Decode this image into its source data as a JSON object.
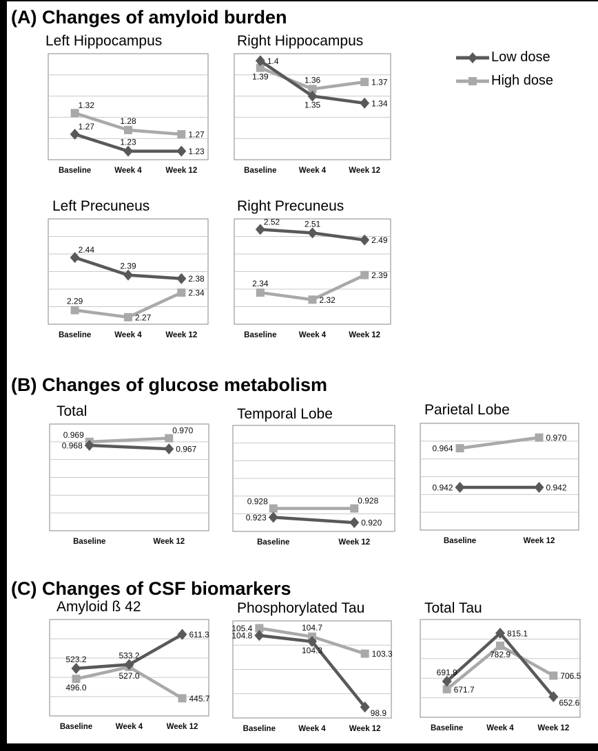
{
  "figure": {
    "frame_color": "#000000",
    "background": "#ffffff",
    "low_dose_color": "#595959",
    "high_dose_color": "#a9a9a9"
  },
  "sections": [
    {
      "id": "A",
      "heading": "(A) Changes of amyloid burden"
    },
    {
      "id": "B",
      "heading": "(B) Changes of glucose metabolism"
    },
    {
      "id": "C",
      "heading": "(C) Changes of CSF biomarkers"
    }
  ],
  "legend": {
    "items": [
      {
        "label": "Low dose",
        "marker": "diamond",
        "color": "#595959"
      },
      {
        "label": "High dose",
        "marker": "square",
        "color": "#a9a9a9"
      }
    ],
    "position": "top-right"
  },
  "chart_data": [
    {
      "id": "left-hippocampus",
      "section": "A",
      "type": "line",
      "title": "Left Hippocampus",
      "categories": [
        "Baseline",
        "Week 4",
        "Week 12"
      ],
      "ylim": [
        1.21,
        1.46
      ],
      "gridline_bands": 5,
      "grid": true,
      "series": [
        {
          "name": "Low dose",
          "marker": "diamond",
          "color": "#595959",
          "values": [
            1.27,
            1.23,
            1.23
          ],
          "labels": [
            "1.27",
            "1.23",
            "1.23"
          ],
          "label_pos": [
            "right-up",
            "above",
            "right"
          ]
        },
        {
          "name": "High dose",
          "marker": "square",
          "color": "#a9a9a9",
          "values": [
            1.32,
            1.28,
            1.27
          ],
          "labels": [
            "1.32",
            "1.28",
            "1.27"
          ],
          "label_pos": [
            "right-up",
            "above",
            "right"
          ]
        }
      ]
    },
    {
      "id": "right-hippocampus",
      "section": "A",
      "type": "line",
      "title": "Right Hippocampus",
      "categories": [
        "Baseline",
        "Week 4",
        "Week 12"
      ],
      "ylim": [
        1.26,
        1.41
      ],
      "gridline_bands": 5,
      "grid": true,
      "series": [
        {
          "name": "Low dose",
          "marker": "diamond",
          "color": "#595959",
          "values": [
            1.4,
            1.35,
            1.34
          ],
          "labels": [
            "1.4",
            "1.35",
            "1.34"
          ],
          "label_pos": [
            "right",
            "below",
            "right"
          ]
        },
        {
          "name": "High dose",
          "marker": "square",
          "color": "#a9a9a9",
          "values": [
            1.39,
            1.36,
            1.37
          ],
          "labels": [
            "1.39",
            "1.36",
            "1.37"
          ],
          "label_pos": [
            "below",
            "above",
            "right"
          ]
        }
      ]
    },
    {
      "id": "left-precuneus",
      "section": "A",
      "type": "line",
      "title": "Left Precuneus",
      "categories": [
        "Baseline",
        "Week 4",
        "Week 12"
      ],
      "ylim": [
        2.25,
        2.55
      ],
      "gridline_bands": 6,
      "grid": true,
      "series": [
        {
          "name": "Low dose",
          "marker": "diamond",
          "color": "#595959",
          "values": [
            2.44,
            2.39,
            2.38
          ],
          "labels": [
            "2.44",
            "2.39",
            "2.38"
          ],
          "label_pos": [
            "right-up",
            "above",
            "right"
          ]
        },
        {
          "name": "High dose",
          "marker": "square",
          "color": "#a9a9a9",
          "values": [
            2.29,
            2.27,
            2.34
          ],
          "labels": [
            "2.29",
            "2.27",
            "2.34"
          ],
          "label_pos": [
            "above",
            "right",
            "right"
          ]
        }
      ]
    },
    {
      "id": "right-precuneus",
      "section": "A",
      "type": "line",
      "title": "Right Precuneus",
      "categories": [
        "Baseline",
        "Week 4",
        "Week 12"
      ],
      "ylim": [
        2.25,
        2.55
      ],
      "gridline_bands": 6,
      "grid": true,
      "series": [
        {
          "name": "Low dose",
          "marker": "diamond",
          "color": "#595959",
          "values": [
            2.52,
            2.51,
            2.49
          ],
          "labels": [
            "2.52",
            "2.51",
            "2.49"
          ],
          "label_pos": [
            "right-up",
            "above",
            "right"
          ]
        },
        {
          "name": "High dose",
          "marker": "square",
          "color": "#a9a9a9",
          "values": [
            2.34,
            2.32,
            2.39
          ],
          "labels": [
            "2.34",
            "2.32",
            "2.39"
          ],
          "label_pos": [
            "above",
            "right",
            "right"
          ]
        }
      ]
    },
    {
      "id": "total",
      "section": "B",
      "type": "line",
      "title": "Total",
      "categories": [
        "Baseline",
        "Week 12"
      ],
      "ylim": [
        0.944,
        0.974
      ],
      "gridline_bands": 6,
      "grid": true,
      "series": [
        {
          "name": "Low dose",
          "marker": "diamond",
          "color": "#595959",
          "values": [
            0.968,
            0.967
          ],
          "labels": [
            "0.968",
            "0.967"
          ],
          "label_pos": [
            "left",
            "right"
          ]
        },
        {
          "name": "High dose",
          "marker": "square",
          "color": "#a9a9a9",
          "values": [
            0.969,
            0.97
          ],
          "labels": [
            "0.969",
            "0.970"
          ],
          "label_pos": [
            "left-up",
            "right-up"
          ]
        }
      ]
    },
    {
      "id": "temporal-lobe",
      "section": "B",
      "type": "line",
      "title": "Temporal Lobe",
      "categories": [
        "Baseline",
        "Week 12"
      ],
      "ylim": [
        0.915,
        0.975
      ],
      "gridline_bands": 6,
      "grid": true,
      "series": [
        {
          "name": "Low dose",
          "marker": "diamond",
          "color": "#595959",
          "values": [
            0.923,
            0.92
          ],
          "labels": [
            "0.923",
            "0.920"
          ],
          "label_pos": [
            "left",
            "right"
          ]
        },
        {
          "name": "High dose",
          "marker": "square",
          "color": "#a9a9a9",
          "values": [
            0.928,
            0.928
          ],
          "labels": [
            "0.928",
            "0.928"
          ],
          "label_pos": [
            "left-up",
            "right-up"
          ]
        }
      ]
    },
    {
      "id": "parietal-lobe",
      "section": "B",
      "type": "line",
      "title": "Parietal Lobe",
      "categories": [
        "Baseline",
        "Week 12"
      ],
      "ylim": [
        0.918,
        0.978
      ],
      "gridline_bands": 6,
      "grid": true,
      "series": [
        {
          "name": "Low dose",
          "marker": "diamond",
          "color": "#595959",
          "values": [
            0.942,
            0.942
          ],
          "labels": [
            "0.942",
            "0.942"
          ],
          "label_pos": [
            "left",
            "right"
          ]
        },
        {
          "name": "High dose",
          "marker": "square",
          "color": "#a9a9a9",
          "values": [
            0.964,
            0.97
          ],
          "labels": [
            "0.964",
            "0.970"
          ],
          "label_pos": [
            "left",
            "right"
          ]
        }
      ]
    },
    {
      "id": "amyloid-beta-42",
      "section": "C",
      "type": "line",
      "title": "Amyloid ß 42",
      "categories": [
        "Baseline",
        "Week 4",
        "Week 12"
      ],
      "ylim": [
        400,
        650
      ],
      "gridline_bands": 5,
      "grid": true,
      "series": [
        {
          "name": "Low dose",
          "marker": "diamond",
          "color": "#595959",
          "values": [
            523.2,
            533.2,
            611.3
          ],
          "labels": [
            "523.2",
            "533.2",
            "611.3"
          ],
          "label_pos": [
            "above",
            "above",
            "right"
          ]
        },
        {
          "name": "High dose",
          "marker": "square",
          "color": "#a9a9a9",
          "values": [
            496.0,
            527.0,
            445.7
          ],
          "labels": [
            "496.0",
            "527.0",
            "445.7"
          ],
          "label_pos": [
            "below",
            "below",
            "right"
          ]
        }
      ]
    },
    {
      "id": "phosphorylated-tau",
      "section": "C",
      "type": "line",
      "title": "Phosphorylated Tau",
      "categories": [
        "Baseline",
        "Week 4",
        "Week 12"
      ],
      "ylim": [
        98,
        106
      ],
      "gridline_bands": 4,
      "grid": true,
      "series": [
        {
          "name": "Low dose",
          "marker": "diamond",
          "color": "#595959",
          "values": [
            104.8,
            104.3,
            98.9
          ],
          "labels": [
            "104.8",
            "104.3",
            "98.9"
          ],
          "label_pos": [
            "left",
            "below",
            "right-down"
          ]
        },
        {
          "name": "High dose",
          "marker": "square",
          "color": "#a9a9a9",
          "values": [
            105.4,
            104.7,
            103.3
          ],
          "labels": [
            "105.4",
            "104.7",
            "103.3"
          ],
          "label_pos": [
            "left",
            "above",
            "right"
          ]
        }
      ]
    },
    {
      "id": "total-tau",
      "section": "C",
      "type": "line",
      "title": "Total Tau",
      "categories": [
        "Baseline",
        "Week 4",
        "Week 12"
      ],
      "ylim": [
        600,
        850
      ],
      "gridline_bands": 5,
      "grid": true,
      "series": [
        {
          "name": "Low dose",
          "marker": "diamond",
          "color": "#595959",
          "values": [
            691.9,
            815.1,
            652.6
          ],
          "labels": [
            "691.9",
            "815.1",
            "652.6"
          ],
          "label_pos": [
            "above",
            "right",
            "right-down"
          ]
        },
        {
          "name": "High dose",
          "marker": "square",
          "color": "#a9a9a9",
          "values": [
            671.7,
            782.9,
            706.5
          ],
          "labels": [
            "671.7",
            "782.9",
            "706.5"
          ],
          "label_pos": [
            "right",
            "below",
            "right"
          ]
        }
      ]
    }
  ]
}
